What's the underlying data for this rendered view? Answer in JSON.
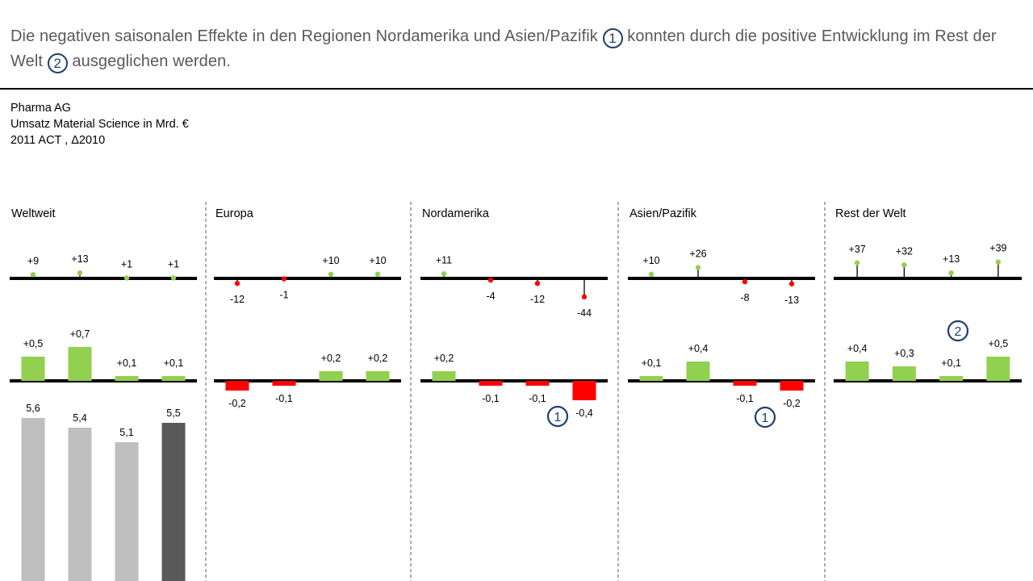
{
  "headline": {
    "part1": "Die negativen saisonalen Effekte in den Regionen Nordamerika und Asien/Pazifik",
    "marker1": "1",
    "part2": "konnten durch die positive Entwicklung im Rest der Welt",
    "marker2": "2",
    "part3": "ausgeglichen werden."
  },
  "meta": {
    "company": "Pharma AG",
    "measure": "Umsatz Material Science in Mrd. €",
    "scenario": "2011 ACT , Δ2010"
  },
  "colors": {
    "positive": "#92d050",
    "negative": "#ff0000",
    "previous": "#bfbfbf",
    "actual": "#595959",
    "marker": "#1f3f6e",
    "text": "#595959"
  },
  "chart_data": {
    "type": "bar",
    "panels": [
      {
        "title": "Weltweit",
        "delta_percent": {
          "values": [
            9,
            13,
            1,
            1
          ],
          "labels": [
            "+9",
            "+13",
            "+1",
            "+1"
          ]
        },
        "delta_abs": {
          "values": [
            0.5,
            0.7,
            0.1,
            0.1
          ],
          "labels": [
            "+0,5",
            "+0,7",
            "+0,1",
            "+0,1"
          ]
        },
        "totals": {
          "values": [
            5.6,
            5.4,
            5.1,
            5.5
          ],
          "labels": [
            "5,6",
            "5,4",
            "5,1",
            "5,5"
          ]
        }
      },
      {
        "title": "Europa",
        "delta_percent": {
          "values": [
            -12,
            -1,
            10,
            10
          ],
          "labels": [
            "-12",
            "-1",
            "+10",
            "+10"
          ]
        },
        "delta_abs": {
          "values": [
            -0.2,
            -0.1,
            0.2,
            0.2
          ],
          "labels": [
            "-0,2",
            "-0,1",
            "+0,2",
            "+0,2"
          ]
        },
        "totals": {
          "values": [],
          "labels": []
        }
      },
      {
        "title": "Nordamerika",
        "delta_percent": {
          "values": [
            11,
            -4,
            -12,
            -44
          ],
          "labels": [
            "+11",
            "-4",
            "-12",
            "-44"
          ]
        },
        "delta_abs": {
          "values": [
            0.2,
            -0.1,
            -0.1,
            -0.4
          ],
          "labels": [
            "+0,2",
            "-0,1",
            "-0,1",
            "-0,4"
          ]
        },
        "marker": {
          "label": "1",
          "index": 3
        }
      },
      {
        "title": "Asien/Pazifik",
        "delta_percent": {
          "values": [
            10,
            26,
            -8,
            -13
          ],
          "labels": [
            "+10",
            "+26",
            "-8",
            "-13"
          ]
        },
        "delta_abs": {
          "values": [
            0.1,
            0.4,
            -0.1,
            -0.2
          ],
          "labels": [
            "+0,1",
            "+0,4",
            "-0,1",
            "-0,2"
          ]
        },
        "marker": {
          "label": "1",
          "index": 2
        }
      },
      {
        "title": "Rest der Welt",
        "delta_percent": {
          "values": [
            37,
            32,
            13,
            39
          ],
          "labels": [
            "+37",
            "+32",
            "+13",
            "+39"
          ]
        },
        "delta_abs": {
          "values": [
            0.4,
            0.3,
            0.1,
            0.5
          ],
          "labels": [
            "+0,4",
            "+0,3",
            "+0,1",
            "+0,5"
          ]
        },
        "marker": {
          "label": "2",
          "index": 2
        }
      }
    ]
  }
}
